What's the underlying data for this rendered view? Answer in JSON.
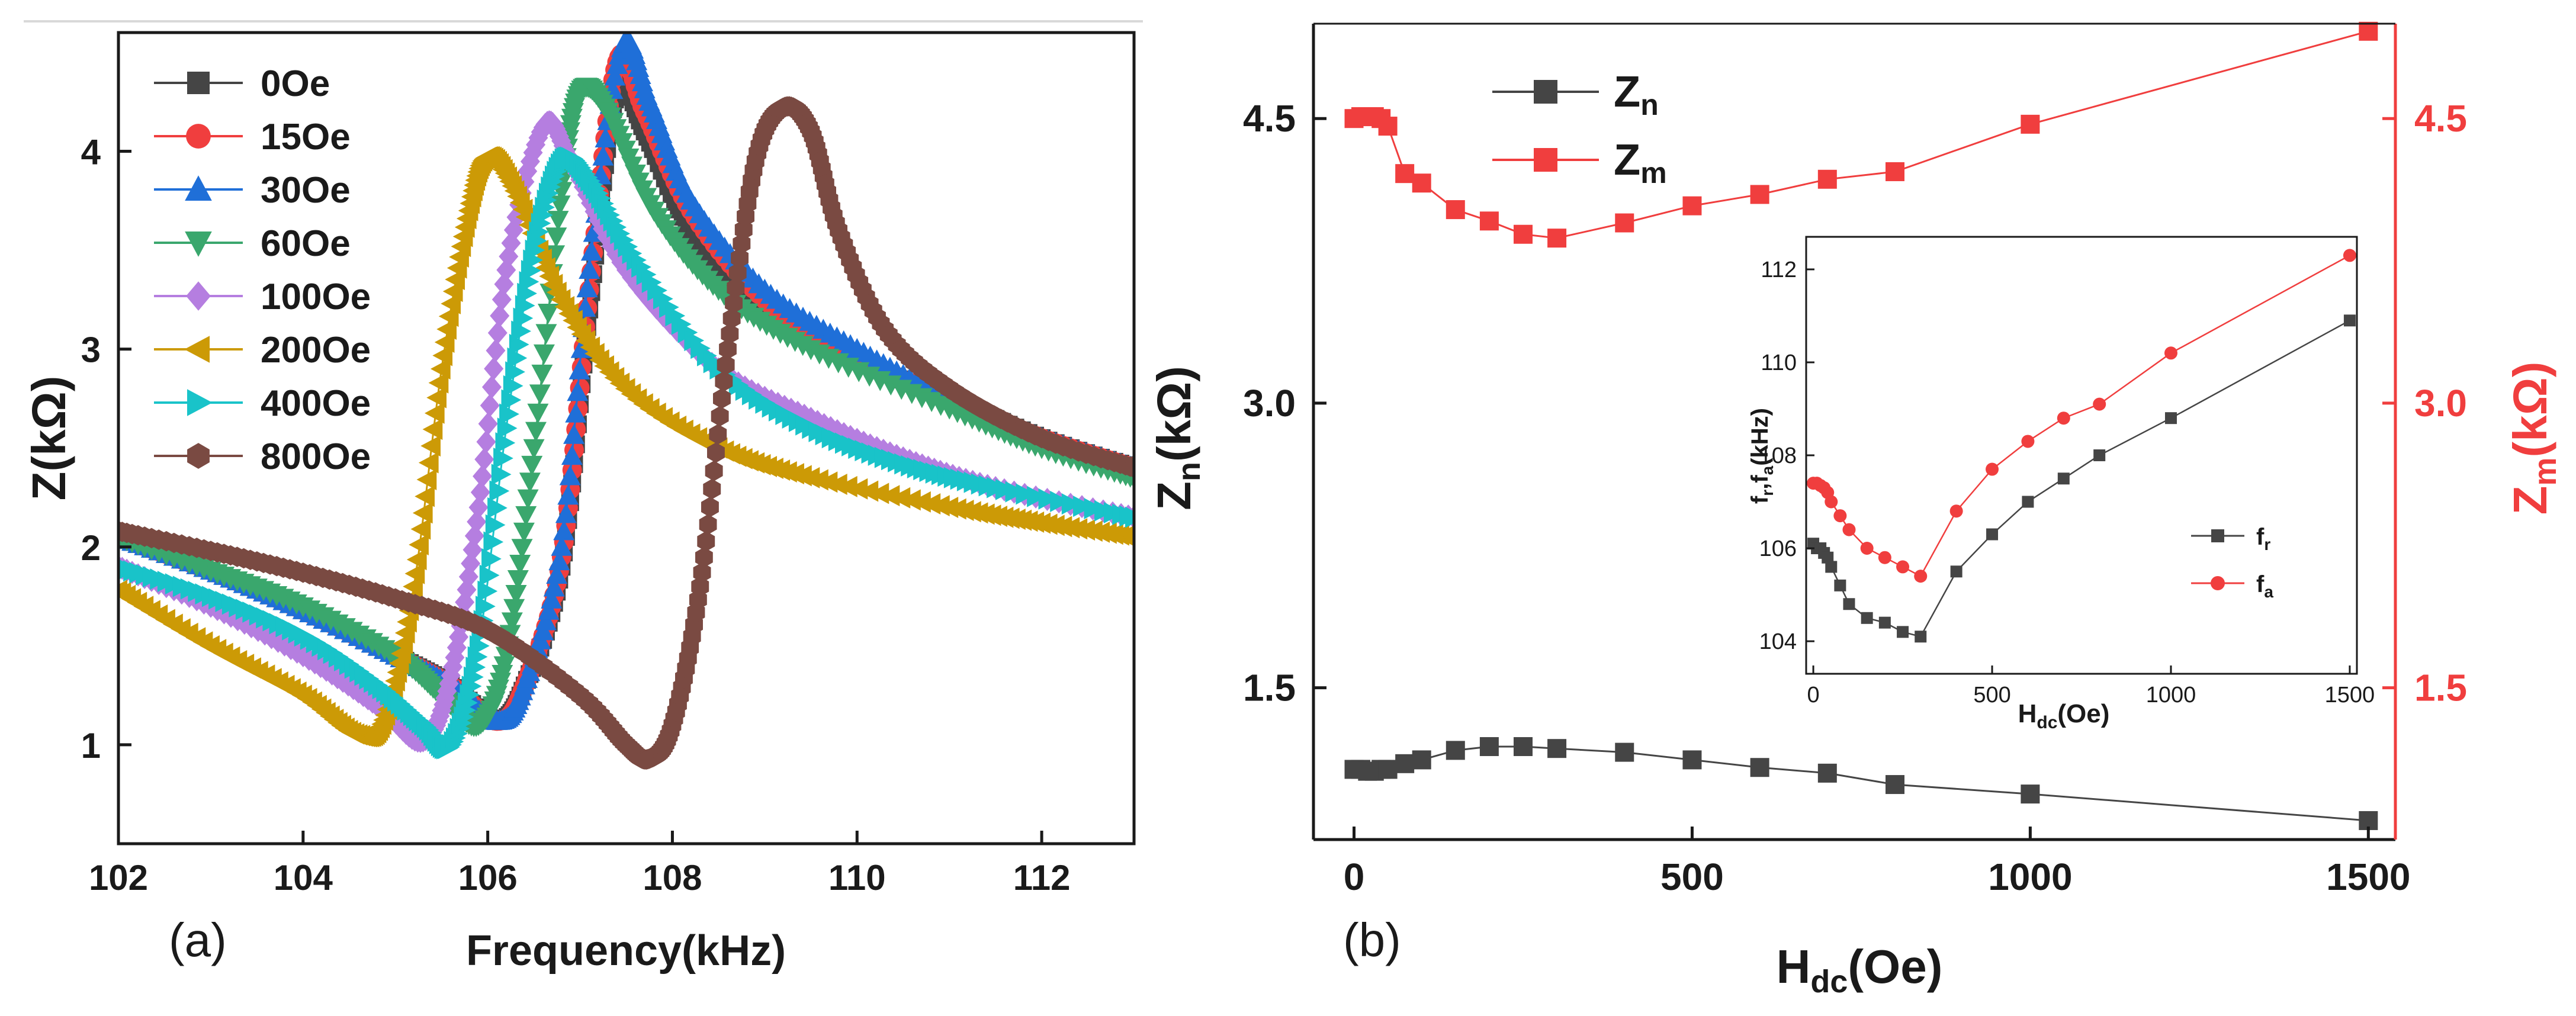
{
  "colors": {
    "red": "#f03e3e",
    "blue": "#1f6fd8",
    "green": "#3aa76d",
    "purple": "#b57ee0",
    "gold": "#cc9a06",
    "cyan": "#19c3c9",
    "brown": "#7a4a42",
    "gray": "#454545",
    "axis": "#1a1a1a"
  },
  "chart_data": [
    {
      "panel": "(a)",
      "type": "scatter",
      "title": "",
      "xlabel": "Frequency(kHz)",
      "ylabel": "Z(kΩ)",
      "xlim": [
        102,
        113
      ],
      "ylim": [
        0.5,
        4.6
      ],
      "xticks": [
        "102",
        "104",
        "106",
        "108",
        "110",
        "112"
      ],
      "yticks": [
        "1",
        "2",
        "3",
        "4"
      ],
      "legend_position": "top-left",
      "series": [
        {
          "name": "0Oe",
          "marker": "square",
          "color": "#454545",
          "points": [
            [
              102,
              2.05
            ],
            [
              103,
              1.88
            ],
            [
              104,
              1.68
            ],
            [
              105,
              1.45
            ],
            [
              105.6,
              1.3
            ],
            [
              106.1,
              1.12
            ],
            [
              106.4,
              1.3
            ],
            [
              106.8,
              1.9
            ],
            [
              107.1,
              3.2
            ],
            [
              107.4,
              4.3
            ],
            [
              107.7,
              4.1
            ],
            [
              108.2,
              3.6
            ],
            [
              109,
              3.2
            ],
            [
              110,
              2.95
            ],
            [
              111,
              2.75
            ],
            [
              112,
              2.55
            ],
            [
              113,
              2.4
            ]
          ]
        },
        {
          "name": "15Oe",
          "marker": "circle",
          "color": "#f03e3e",
          "points": [
            [
              102,
              2.05
            ],
            [
              103,
              1.88
            ],
            [
              104,
              1.68
            ],
            [
              105,
              1.45
            ],
            [
              105.6,
              1.3
            ],
            [
              106.1,
              1.12
            ],
            [
              106.4,
              1.3
            ],
            [
              106.8,
              1.95
            ],
            [
              107.1,
              3.3
            ],
            [
              107.4,
              4.45
            ],
            [
              107.7,
              4.2
            ],
            [
              108.2,
              3.7
            ],
            [
              109,
              3.25
            ],
            [
              110,
              2.95
            ],
            [
              111,
              2.75
            ],
            [
              112,
              2.55
            ],
            [
              113,
              2.4
            ]
          ]
        },
        {
          "name": "30Oe",
          "marker": "triangle-up",
          "color": "#1f6fd8",
          "points": [
            [
              102,
              2.05
            ],
            [
              103,
              1.88
            ],
            [
              104,
              1.68
            ],
            [
              105,
              1.45
            ],
            [
              105.6,
              1.3
            ],
            [
              106.1,
              1.12
            ],
            [
              106.4,
              1.3
            ],
            [
              106.8,
              2.0
            ],
            [
              107.1,
              3.4
            ],
            [
              107.45,
              4.52
            ],
            [
              107.75,
              4.25
            ],
            [
              108.2,
              3.75
            ],
            [
              109,
              3.3
            ],
            [
              110,
              3.0
            ],
            [
              111,
              2.75
            ],
            [
              112,
              2.55
            ],
            [
              113,
              2.4
            ]
          ]
        },
        {
          "name": "60Oe",
          "marker": "triangle-down",
          "color": "#3aa76d",
          "points": [
            [
              102,
              2.05
            ],
            [
              103,
              1.88
            ],
            [
              104,
              1.7
            ],
            [
              105,
              1.45
            ],
            [
              105.5,
              1.25
            ],
            [
              105.9,
              1.1
            ],
            [
              106.2,
              1.45
            ],
            [
              106.5,
              2.5
            ],
            [
              106.8,
              3.8
            ],
            [
              107.0,
              4.3
            ],
            [
              107.3,
              4.2
            ],
            [
              107.8,
              3.7
            ],
            [
              108.5,
              3.3
            ],
            [
              109.5,
              3.0
            ],
            [
              111,
              2.7
            ],
            [
              112,
              2.5
            ],
            [
              113,
              2.35
            ]
          ]
        },
        {
          "name": "100Oe",
          "marker": "diamond",
          "color": "#b57ee0",
          "points": [
            [
              102,
              1.9
            ],
            [
              103,
              1.7
            ],
            [
              104,
              1.45
            ],
            [
              104.8,
              1.2
            ],
            [
              105.3,
              1.02
            ],
            [
              105.6,
              1.35
            ],
            [
              105.9,
              2.2
            ],
            [
              106.2,
              3.4
            ],
            [
              106.6,
              4.12
            ],
            [
              106.9,
              3.95
            ],
            [
              107.5,
              3.4
            ],
            [
              108.5,
              2.9
            ],
            [
              109.5,
              2.65
            ],
            [
              110.5,
              2.45
            ],
            [
              111.5,
              2.3
            ],
            [
              113,
              2.15
            ]
          ]
        },
        {
          "name": "200Oe",
          "marker": "triangle-left",
          "color": "#cc9a06",
          "points": [
            [
              102,
              1.78
            ],
            [
              103,
              1.5
            ],
            [
              104,
              1.25
            ],
            [
              104.6,
              1.05
            ],
            [
              104.9,
              1.15
            ],
            [
              105.2,
              1.8
            ],
            [
              105.5,
              2.9
            ],
            [
              105.8,
              3.7
            ],
            [
              106.0,
              3.97
            ],
            [
              106.3,
              3.8
            ],
            [
              106.8,
              3.25
            ],
            [
              107.5,
              2.8
            ],
            [
              108.5,
              2.5
            ],
            [
              109.5,
              2.35
            ],
            [
              111,
              2.2
            ],
            [
              112,
              2.12
            ],
            [
              113,
              2.05
            ]
          ]
        },
        {
          "name": "400Oe",
          "marker": "triangle-right",
          "color": "#19c3c9",
          "points": [
            [
              102,
              1.9
            ],
            [
              103,
              1.75
            ],
            [
              104,
              1.55
            ],
            [
              104.8,
              1.3
            ],
            [
              105.3,
              1.1
            ],
            [
              105.6,
              1.0
            ],
            [
              105.9,
              1.5
            ],
            [
              106.2,
              2.6
            ],
            [
              106.5,
              3.5
            ],
            [
              106.8,
              3.95
            ],
            [
              107.1,
              3.85
            ],
            [
              107.6,
              3.45
            ],
            [
              108.5,
              2.9
            ],
            [
              109.5,
              2.6
            ],
            [
              110.5,
              2.42
            ],
            [
              111.5,
              2.3
            ],
            [
              113,
              2.15
            ]
          ]
        },
        {
          "name": "800Oe",
          "marker": "hexagon",
          "color": "#7a4a42",
          "points": [
            [
              102,
              2.08
            ],
            [
              103,
              1.98
            ],
            [
              104,
              1.87
            ],
            [
              105,
              1.74
            ],
            [
              106,
              1.58
            ],
            [
              107,
              1.25
            ],
            [
              107.5,
              1.0
            ],
            [
              107.75,
              0.93
            ],
            [
              108.0,
              1.1
            ],
            [
              108.3,
              1.8
            ],
            [
              108.6,
              3.0
            ],
            [
              108.9,
              3.95
            ],
            [
              109.2,
              4.22
            ],
            [
              109.5,
              4.1
            ],
            [
              109.8,
              3.6
            ],
            [
              110.3,
              3.1
            ],
            [
              111,
              2.8
            ],
            [
              112,
              2.55
            ],
            [
              113,
              2.4
            ]
          ]
        }
      ]
    },
    {
      "panel": "(b)",
      "type": "line",
      "title": "",
      "xlabel": "H_dc(Oe)",
      "ylabel_left": "Z_n(kΩ)",
      "ylabel_right": "Z_m(kΩ)",
      "xlim": [
        -60,
        1540
      ],
      "ylim": [
        0.7,
        5.0
      ],
      "xticks": [
        "0",
        "500",
        "1000",
        "1500"
      ],
      "yticks_left": [
        "1.5",
        "3.0",
        "4.5"
      ],
      "yticks_right": [
        "1.5",
        "3.0",
        "4.5"
      ],
      "legend_position": "top-left",
      "series": [
        {
          "name": "Zn",
          "marker": "square",
          "color": "#454545",
          "axis": "left",
          "x": [
            0,
            10,
            20,
            30,
            40,
            50,
            75,
            100,
            150,
            200,
            250,
            300,
            400,
            500,
            600,
            700,
            800,
            1000,
            1500
          ],
          "y": [
            1.07,
            1.07,
            1.06,
            1.06,
            1.07,
            1.07,
            1.1,
            1.12,
            1.17,
            1.19,
            1.19,
            1.18,
            1.16,
            1.12,
            1.08,
            1.05,
            0.99,
            0.94,
            0.8
          ]
        },
        {
          "name": "Zm",
          "marker": "square",
          "color": "#f03e3e",
          "axis": "right",
          "x": [
            0,
            10,
            20,
            30,
            40,
            50,
            75,
            100,
            150,
            200,
            250,
            300,
            400,
            500,
            600,
            700,
            800,
            1000,
            1500
          ],
          "y": [
            4.5,
            4.51,
            4.51,
            4.51,
            4.5,
            4.46,
            4.21,
            4.16,
            4.02,
            3.96,
            3.89,
            3.87,
            3.95,
            4.04,
            4.1,
            4.18,
            4.22,
            4.47,
            4.96
          ]
        }
      ],
      "inset": {
        "type": "line",
        "xlabel": "H_dc(Oe)",
        "ylabel": "f_r,f_a(kHz)",
        "xlim": [
          -20,
          1520
        ],
        "ylim": [
          103.3,
          112.7
        ],
        "xticks": [
          "0",
          "500",
          "1000",
          "1500"
        ],
        "yticks": [
          "104",
          "106",
          "108",
          "110",
          "112"
        ],
        "legend_position": "bottom-right",
        "series": [
          {
            "name": "fr",
            "marker": "square",
            "color": "#454545",
            "x": [
              0,
              10,
              20,
              30,
              40,
              50,
              75,
              100,
              150,
              200,
              250,
              300,
              400,
              500,
              600,
              700,
              800,
              1000,
              1500
            ],
            "y": [
              106.1,
              106.0,
              106.0,
              105.9,
              105.8,
              105.6,
              105.2,
              104.8,
              104.5,
              104.4,
              104.2,
              104.1,
              105.5,
              106.3,
              107.0,
              107.5,
              108.0,
              108.8,
              110.9
            ]
          },
          {
            "name": "fa",
            "marker": "circle",
            "color": "#f03e3e",
            "x": [
              0,
              10,
              20,
              30,
              40,
              50,
              75,
              100,
              150,
              200,
              250,
              300,
              400,
              500,
              600,
              700,
              800,
              1000,
              1500
            ],
            "y": [
              107.4,
              107.4,
              107.35,
              107.3,
              107.2,
              107.0,
              106.7,
              106.4,
              106.0,
              105.8,
              105.6,
              105.4,
              106.8,
              107.7,
              108.3,
              108.8,
              109.1,
              110.2,
              112.3
            ]
          }
        ]
      }
    }
  ]
}
